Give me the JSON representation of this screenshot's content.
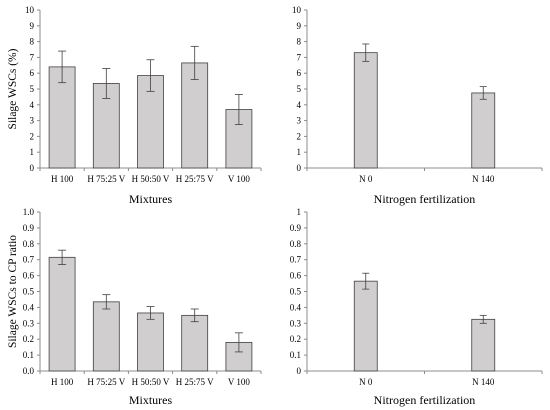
{
  "chart_data": [
    {
      "type": "bar",
      "categories": [
        "H 100",
        "H 75:25 V",
        "H 50:50 V",
        "H 25:75 V",
        "V 100"
      ],
      "values": [
        6.4,
        5.35,
        5.85,
        6.65,
        3.7
      ],
      "errors": [
        1.0,
        0.95,
        1.0,
        1.05,
        0.95
      ],
      "xlabel": "Mixtures",
      "ylabel": "Silage WSCs (%)",
      "ylim": [
        0,
        10
      ],
      "yticks": [
        "0",
        "1",
        "2",
        "3",
        "4",
        "5",
        "6",
        "7",
        "8",
        "9",
        "10"
      ],
      "bar_color": "#d0cece",
      "grid": false
    },
    {
      "type": "bar",
      "categories": [
        "N 0",
        "N 140"
      ],
      "values": [
        7.3,
        4.75
      ],
      "errors": [
        0.55,
        0.4
      ],
      "xlabel": "Nitrogen fertilization",
      "ylabel": "",
      "ylim": [
        0,
        10
      ],
      "yticks": [
        "0",
        "1",
        "2",
        "3",
        "4",
        "5",
        "6",
        "7",
        "8",
        "9",
        "10"
      ],
      "bar_color": "#d0cece",
      "grid": false
    },
    {
      "type": "bar",
      "categories": [
        "H 100",
        "H 75:25 V",
        "H 50:50 V",
        "H 25:75 V",
        "V 100"
      ],
      "values": [
        0.715,
        0.435,
        0.365,
        0.35,
        0.18
      ],
      "errors": [
        0.045,
        0.045,
        0.04,
        0.04,
        0.06
      ],
      "xlabel": "Mixtures",
      "ylabel": "Silage WSCs to CP ratio",
      "ylim": [
        0,
        1
      ],
      "yticks": [
        "0.0",
        "0.1",
        "0.2",
        "0.3",
        "0.4",
        "0.5",
        "0.6",
        "0.7",
        "0.8",
        "0.9",
        "1.0"
      ],
      "bar_color": "#d0cece",
      "grid": false
    },
    {
      "type": "bar",
      "categories": [
        "N 0",
        "N 140"
      ],
      "values": [
        0.565,
        0.325
      ],
      "errors": [
        0.05,
        0.025
      ],
      "xlabel": "Nitrogen fertilization",
      "ylabel": "",
      "ylim": [
        0,
        1
      ],
      "yticks": [
        "0",
        "0.1",
        "0.2",
        "0.3",
        "0.4",
        "0.5",
        "0.6",
        "0.7",
        "0.8",
        "0.9",
        "1"
      ],
      "bar_color": "#d0cece",
      "grid": false
    }
  ]
}
